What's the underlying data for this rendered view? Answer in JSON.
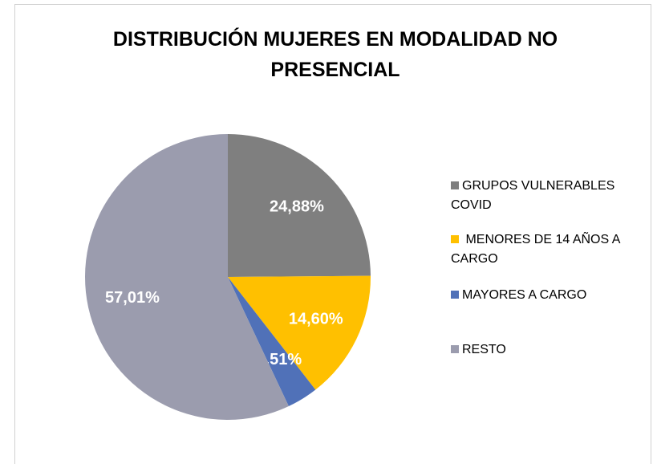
{
  "chart_data": {
    "type": "pie",
    "title": "DISTRIBUCIÓN MUJERES EN MODALIDAD NO PRESENCIAL",
    "categories": [
      "GRUPOS VULNERABLES COVID",
      " MENORES DE 14 AÑOS A CARGO",
      "MAYORES A CARGO",
      "RESTO"
    ],
    "values": [
      24.88,
      14.6,
      3.51,
      57.01
    ],
    "value_labels": [
      "24,88%",
      "14,60%",
      "3,51%",
      "57,01%"
    ],
    "colors": [
      "#7f7f7f",
      "#ffc000",
      "#5071b8",
      "#9b9cae"
    ],
    "legend": "right"
  }
}
